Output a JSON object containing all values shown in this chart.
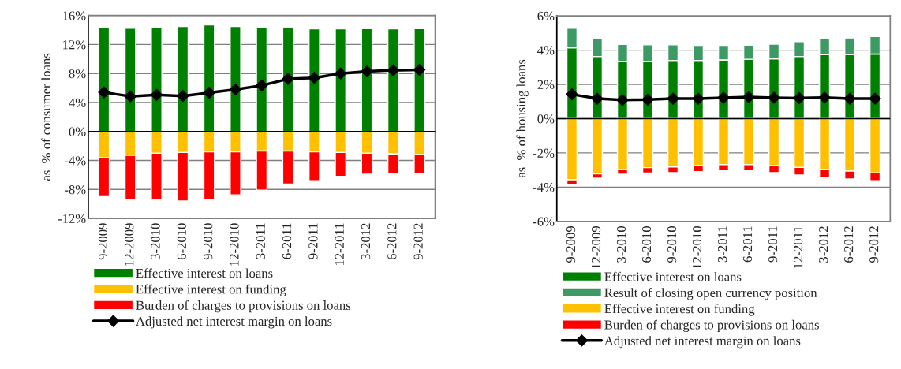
{
  "chart_data": [
    {
      "type": "bar",
      "stacked": true,
      "ylabel": "as  % of consumer loans",
      "categories": [
        "9-2009",
        "12-2009",
        "3-2010",
        "6-2010",
        "9-2010",
        "12-2010",
        "3-2011",
        "6-2011",
        "9-2011",
        "12-2011",
        "3-2012",
        "6-2012",
        "9-2012"
      ],
      "series": [
        {
          "name": "Effective interest on loans",
          "color": "#008000",
          "values": [
            14.3,
            14.25,
            14.4,
            14.5,
            14.7,
            14.5,
            14.4,
            14.35,
            14.15,
            14.15,
            14.2,
            14.15,
            14.2
          ]
        },
        {
          "name": "Effective interest on funding",
          "color": "#ffc000",
          "values": [
            -3.6,
            -3.3,
            -3.0,
            -2.9,
            -2.8,
            -2.8,
            -2.7,
            -2.7,
            -2.8,
            -2.9,
            -3.0,
            -3.1,
            -3.2
          ]
        },
        {
          "name": "Burden of charges to provisions on loans",
          "color": "#ff0000",
          "values": [
            -5.3,
            -6.15,
            -6.4,
            -6.7,
            -6.65,
            -5.95,
            -5.4,
            -4.55,
            -4.0,
            -3.3,
            -2.9,
            -2.7,
            -2.55
          ]
        },
        {
          "name": "Adjusted net interest margin on loans",
          "type": "line",
          "color": "#000000",
          "values": [
            5.4,
            4.85,
            5.05,
            4.9,
            5.35,
            5.8,
            6.35,
            7.25,
            7.4,
            8.0,
            8.3,
            8.45,
            8.5
          ]
        }
      ],
      "ylim": [
        -12,
        16
      ],
      "yticks": [
        {
          "value": -12,
          "label": "-12%"
        },
        {
          "value": -8,
          "label": "-8%"
        },
        {
          "value": -4,
          "label": "-4%"
        },
        {
          "value": 0,
          "label": "0%"
        },
        {
          "value": 4,
          "label": "4%"
        },
        {
          "value": 8,
          "label": "8%"
        },
        {
          "value": 12,
          "label": "12%"
        },
        {
          "value": 16,
          "label": "16%"
        }
      ],
      "grid": "y",
      "legend": "bottom",
      "marker": "diamond"
    },
    {
      "type": "bar",
      "stacked": true,
      "ylabel": "as  % of housing loans",
      "categories": [
        "9-2009",
        "12-2009",
        "3-2010",
        "6-2010",
        "9-2010",
        "12-2010",
        "3-2011",
        "6-2011",
        "9-2011",
        "12-2011",
        "3-2012",
        "6-2012",
        "9-2012"
      ],
      "series": [
        {
          "name": "Effective interest on loans",
          "color": "#008000",
          "values": [
            4.14,
            3.63,
            3.35,
            3.35,
            3.4,
            3.4,
            3.43,
            3.46,
            3.5,
            3.63,
            3.74,
            3.74,
            3.77
          ]
        },
        {
          "name": "Result of closing open currency position",
          "color": "#3c9a64",
          "values": [
            1.14,
            1.03,
            0.99,
            0.96,
            0.91,
            0.88,
            0.85,
            0.83,
            0.85,
            0.87,
            0.94,
            0.97,
            1.03
          ]
        },
        {
          "name": "Effective interest on funding",
          "color": "#ffc000",
          "values": [
            -3.57,
            -3.23,
            -2.98,
            -2.86,
            -2.82,
            -2.74,
            -2.69,
            -2.69,
            -2.74,
            -2.85,
            -2.97,
            -3.06,
            -3.17
          ]
        },
        {
          "name": "Burden of charges to provisions on loans",
          "color": "#ff0000",
          "values": [
            -0.28,
            -0.25,
            -0.27,
            -0.32,
            -0.33,
            -0.35,
            -0.36,
            -0.36,
            -0.41,
            -0.44,
            -0.46,
            -0.46,
            -0.45
          ]
        },
        {
          "name": "Adjusted net interest margin on loans",
          "type": "line",
          "color": "#000000",
          "values": [
            1.42,
            1.17,
            1.09,
            1.11,
            1.17,
            1.17,
            1.22,
            1.26,
            1.22,
            1.2,
            1.23,
            1.17,
            1.17
          ]
        }
      ],
      "ylim": [
        -6,
        6
      ],
      "yticks": [
        {
          "value": -6,
          "label": "-6%"
        },
        {
          "value": -4,
          "label": "-4%"
        },
        {
          "value": -2,
          "label": "-2%"
        },
        {
          "value": 0,
          "label": "0%"
        },
        {
          "value": 2,
          "label": "2%"
        },
        {
          "value": 4,
          "label": "4%"
        },
        {
          "value": 6,
          "label": "6%"
        }
      ],
      "grid": "y",
      "legend": "bottom",
      "marker": "diamond"
    }
  ]
}
